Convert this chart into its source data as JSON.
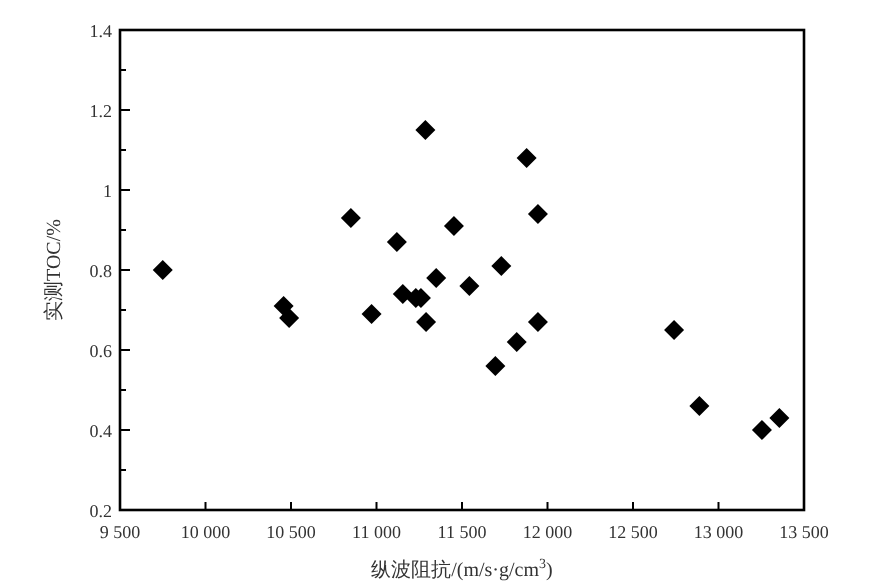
{
  "chart_data": {
    "type": "scatter",
    "xlabel": "纵波阻抗/(m/s·g/cm$^{3}$)",
    "ylabel": "实测TOC/%",
    "x": [
      9750,
      10457,
      10489,
      10850,
      10971,
      11119,
      11154,
      11230,
      11260,
      11286,
      11290,
      11349,
      11453,
      11543,
      11695,
      11730,
      11820,
      11878,
      11944,
      11944,
      12740,
      12888,
      13254,
      13356
    ],
    "series": [
      {
        "color": "#000000",
        "values": [
          0.8,
          0.71,
          0.68,
          0.93,
          0.69,
          0.87,
          0.74,
          0.73,
          0.73,
          1.15,
          0.67,
          0.78,
          0.91,
          0.76,
          0.56,
          0.81,
          0.62,
          1.08,
          0.94,
          0.67,
          0.65,
          0.46,
          0.4,
          0.43
        ]
      }
    ],
    "xlim": [
      9500,
      13500
    ],
    "ylim": [
      0.2,
      1.4
    ],
    "xticks": [
      {
        "value": 9500,
        "label": "9 500"
      },
      {
        "value": 10000,
        "label": "10 000"
      },
      {
        "value": 10500,
        "label": "10 500"
      },
      {
        "value": 11000,
        "label": "11 000"
      },
      {
        "value": 11500,
        "label": "11 500"
      },
      {
        "value": 12000,
        "label": "12 000"
      },
      {
        "value": 12500,
        "label": "12 500"
      },
      {
        "value": 13000,
        "label": "13 000"
      },
      {
        "value": 13500,
        "label": "13 500"
      }
    ],
    "yticks": [
      0.2,
      {
        "value": 0.3,
        "label": null
      },
      0.4,
      {
        "value": 0.5,
        "label": null
      },
      0.6,
      {
        "value": 0.7,
        "label": null
      },
      0.8,
      {
        "value": 0.9,
        "label": null
      },
      1,
      {
        "value": 1.1,
        "label": null
      },
      1.2,
      {
        "value": 1.3,
        "label": null
      },
      1.4
    ],
    "marker": "diamond"
  }
}
